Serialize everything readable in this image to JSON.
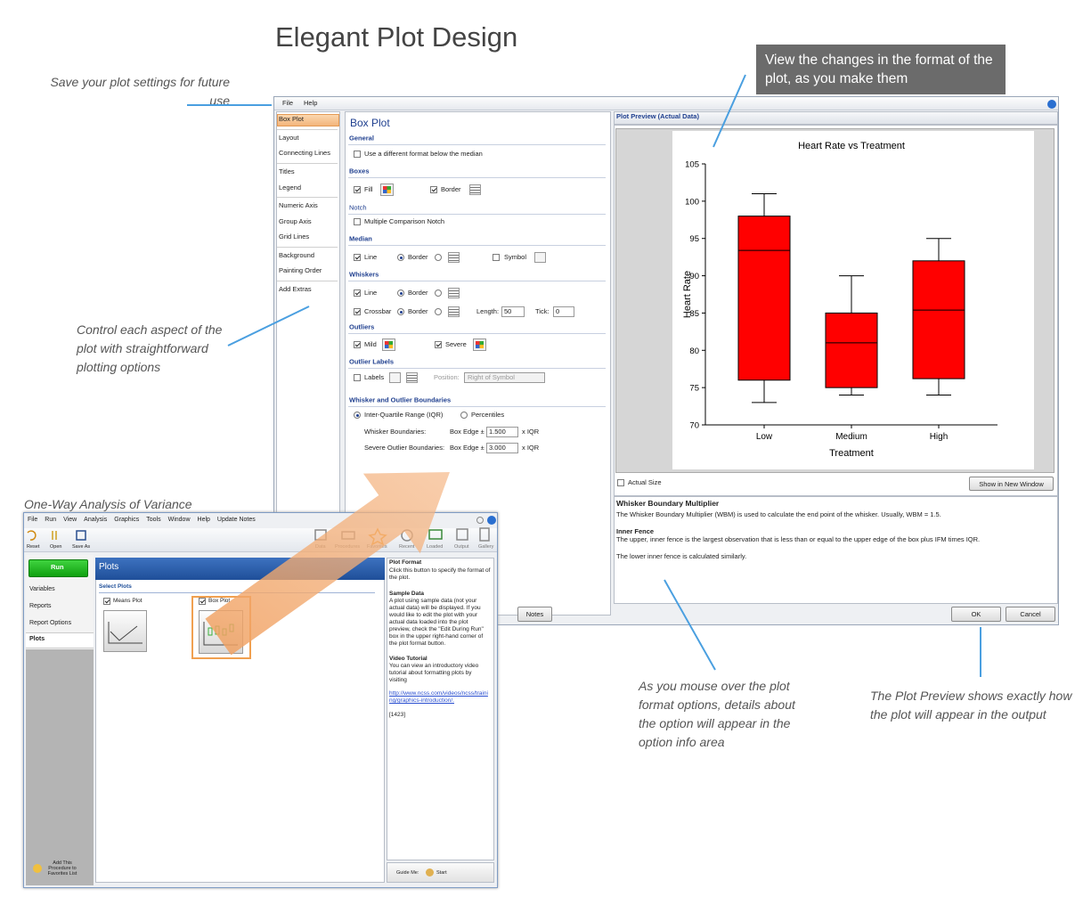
{
  "title": "Elegant Plot Design",
  "callouts": [
    "Save your plot settings for future use",
    "View the changes in the format of the plot, as you make them",
    "Control each aspect of the plot with straightforward plotting options",
    "One-Way Analysis of Variance",
    "As you mouse over the plot format options, details about the option will appear in the option info area",
    "The Plot Preview shows exactly how the plot will appear in the output"
  ],
  "dialog": {
    "menu": [
      "File",
      "Help"
    ],
    "sidebar": [
      "Box Plot",
      "Layout",
      "Connecting Lines",
      "Titles",
      "Legend",
      "Numeric Axis",
      "Group Axis",
      "Grid Lines",
      "Background",
      "Painting Order",
      "Add Extras"
    ],
    "panel_title": "Box Plot",
    "sections": [
      {
        "heading": "General",
        "items": [
          "Use a different format below the median"
        ]
      },
      {
        "heading": "Boxes",
        "items": [
          "Fill",
          "Border"
        ]
      },
      {
        "heading": "Notch",
        "items": [
          "Multiple Comparison Notch"
        ]
      },
      {
        "heading": "Median",
        "items": [
          "Line",
          "Border",
          "Symbol"
        ]
      },
      {
        "heading": "Whiskers",
        "items": [
          "Line",
          "Border",
          "Crossbar",
          "Border",
          "Length:",
          "50",
          "Tick:",
          "0"
        ]
      },
      {
        "heading": "Outliers",
        "items": [
          "Mild",
          "Severe"
        ]
      },
      {
        "heading": "Outlier Labels",
        "items": [
          "Labels",
          "Position:",
          "Right of Symbol"
        ]
      },
      {
        "heading": "Whisker and Outlier Boundaries",
        "items": [
          "Inter-Quartile Range (IQR)",
          "Percentiles",
          "Whisker Boundaries:",
          "Box Edge ±",
          "1.500",
          "x IQR",
          "Severe Outlier Boundaries:",
          "Box Edge ±",
          "3.000",
          "x IQR"
        ]
      }
    ],
    "preview_title": "Plot Preview (Actual Data)",
    "actual_size": "Actual Size",
    "show_new_window": "Show in New Window",
    "info": {
      "heading": "Whisker Boundary Multiplier",
      "text": "The Whisker Boundary Multiplier (WBM) is used to calculate the end point of the whisker. Usually, WBM = 1.5.",
      "subheading": "Inner Fence",
      "text2": "The upper, inner fence is the largest observation that is less than or equal to the upper edge of the box plus IFM times IQR.",
      "text3": "The lower inner fence is calculated similarly."
    },
    "buttons": [
      "Notes",
      "OK",
      "Cancel"
    ]
  },
  "chart_data": {
    "type": "box",
    "title": "Heart Rate vs Treatment",
    "x_label": "Treatment",
    "y_label": "Heart Rate",
    "categories": [
      "Low",
      "Medium",
      "High"
    ],
    "boxes": [
      {
        "min": 73,
        "q1": 76,
        "median": 93.4,
        "q3": 98,
        "max": 101
      },
      {
        "min": 74,
        "q1": 75,
        "median": 81,
        "q3": 85,
        "max": 90
      },
      {
        "min": 74,
        "q1": 76.2,
        "median": 85.4,
        "q3": 92,
        "max": 95
      }
    ],
    "color": "#ff0000",
    "ylim": [
      70,
      105
    ],
    "yticks": [
      70,
      75,
      80,
      85,
      90,
      95,
      100,
      105
    ]
  },
  "anova": {
    "menu": [
      "File",
      "Run",
      "View",
      "Analysis",
      "Graphics",
      "Tools",
      "Window",
      "Help",
      "Update Notes"
    ],
    "toolbar_left": [
      "Reset",
      "Open",
      "Save As"
    ],
    "toolbar_right": [
      "Data",
      "Procedures",
      "Favorites",
      "Recent",
      "Loaded",
      "Output",
      "Gallery"
    ],
    "run": "Run",
    "nav": [
      "Variables",
      "Reports",
      "Report Options",
      "Plots"
    ],
    "favorites": "Add This Procedure to Favorites List",
    "plots_title": "Plots",
    "select_plots": "Select Plots",
    "means_plot": "Means Plot",
    "box_plot": "Box Plot",
    "help": {
      "h1": "Plot Format",
      "p1": "Click this button to specify the format of the plot.",
      "h2": "Sample Data",
      "p2": "A plot using sample data (not your actual data) will be displayed. If you would like to edit the plot with your actual data loaded into the plot preview, check the \"Edit During Run\" box in the upper right-hand corner of the plot format button.",
      "h3": "Video Tutorial",
      "p3": "You can view an introductory video tutorial about formatting plots by visiting",
      "link": "http://www.ncss.com/videos/ncss/training/graphics-introduction/.",
      "code": "[1423]"
    },
    "guide_me": "Guide Me:",
    "start": "Start"
  }
}
